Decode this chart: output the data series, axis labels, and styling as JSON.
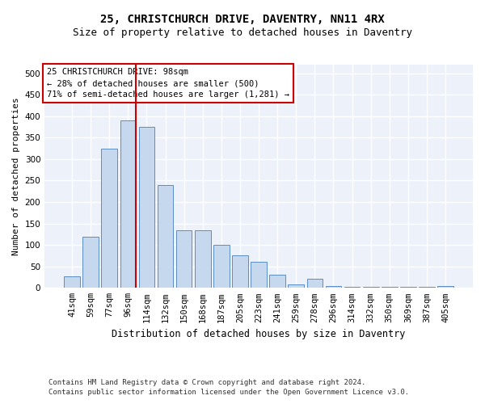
{
  "title1": "25, CHRISTCHURCH DRIVE, DAVENTRY, NN11 4RX",
  "title2": "Size of property relative to detached houses in Daventry",
  "xlabel": "Distribution of detached houses by size in Daventry",
  "ylabel": "Number of detached properties",
  "categories": [
    "41sqm",
    "59sqm",
    "77sqm",
    "96sqm",
    "114sqm",
    "132sqm",
    "150sqm",
    "168sqm",
    "187sqm",
    "205sqm",
    "223sqm",
    "241sqm",
    "259sqm",
    "278sqm",
    "296sqm",
    "314sqm",
    "332sqm",
    "350sqm",
    "369sqm",
    "387sqm",
    "405sqm"
  ],
  "values": [
    27,
    120,
    325,
    390,
    375,
    240,
    135,
    135,
    100,
    75,
    60,
    30,
    8,
    22,
    4,
    2,
    2,
    2,
    2,
    2,
    5
  ],
  "bar_color": "#c5d8ee",
  "bar_edge_color": "#5b8ec4",
  "annotation_line1": "25 CHRISTCHURCH DRIVE: 98sqm",
  "annotation_line2": "← 28% of detached houses are smaller (500)",
  "annotation_line3": "71% of semi-detached houses are larger (1,281) →",
  "annotation_box_facecolor": "#ffffff",
  "annotation_box_edgecolor": "#cc0000",
  "red_line_x": 3.43,
  "footer1": "Contains HM Land Registry data © Crown copyright and database right 2024.",
  "footer2": "Contains public sector information licensed under the Open Government Licence v3.0.",
  "ylim": [
    0,
    520
  ],
  "yticks": [
    0,
    50,
    100,
    150,
    200,
    250,
    300,
    350,
    400,
    450,
    500
  ],
  "background_color": "#edf2fa",
  "grid_color": "#ffffff",
  "title1_fontsize": 10,
  "title2_fontsize": 9,
  "xlabel_fontsize": 8.5,
  "ylabel_fontsize": 8,
  "tick_fontsize": 7.5,
  "footer_fontsize": 6.5,
  "annot_fontsize": 7.5
}
